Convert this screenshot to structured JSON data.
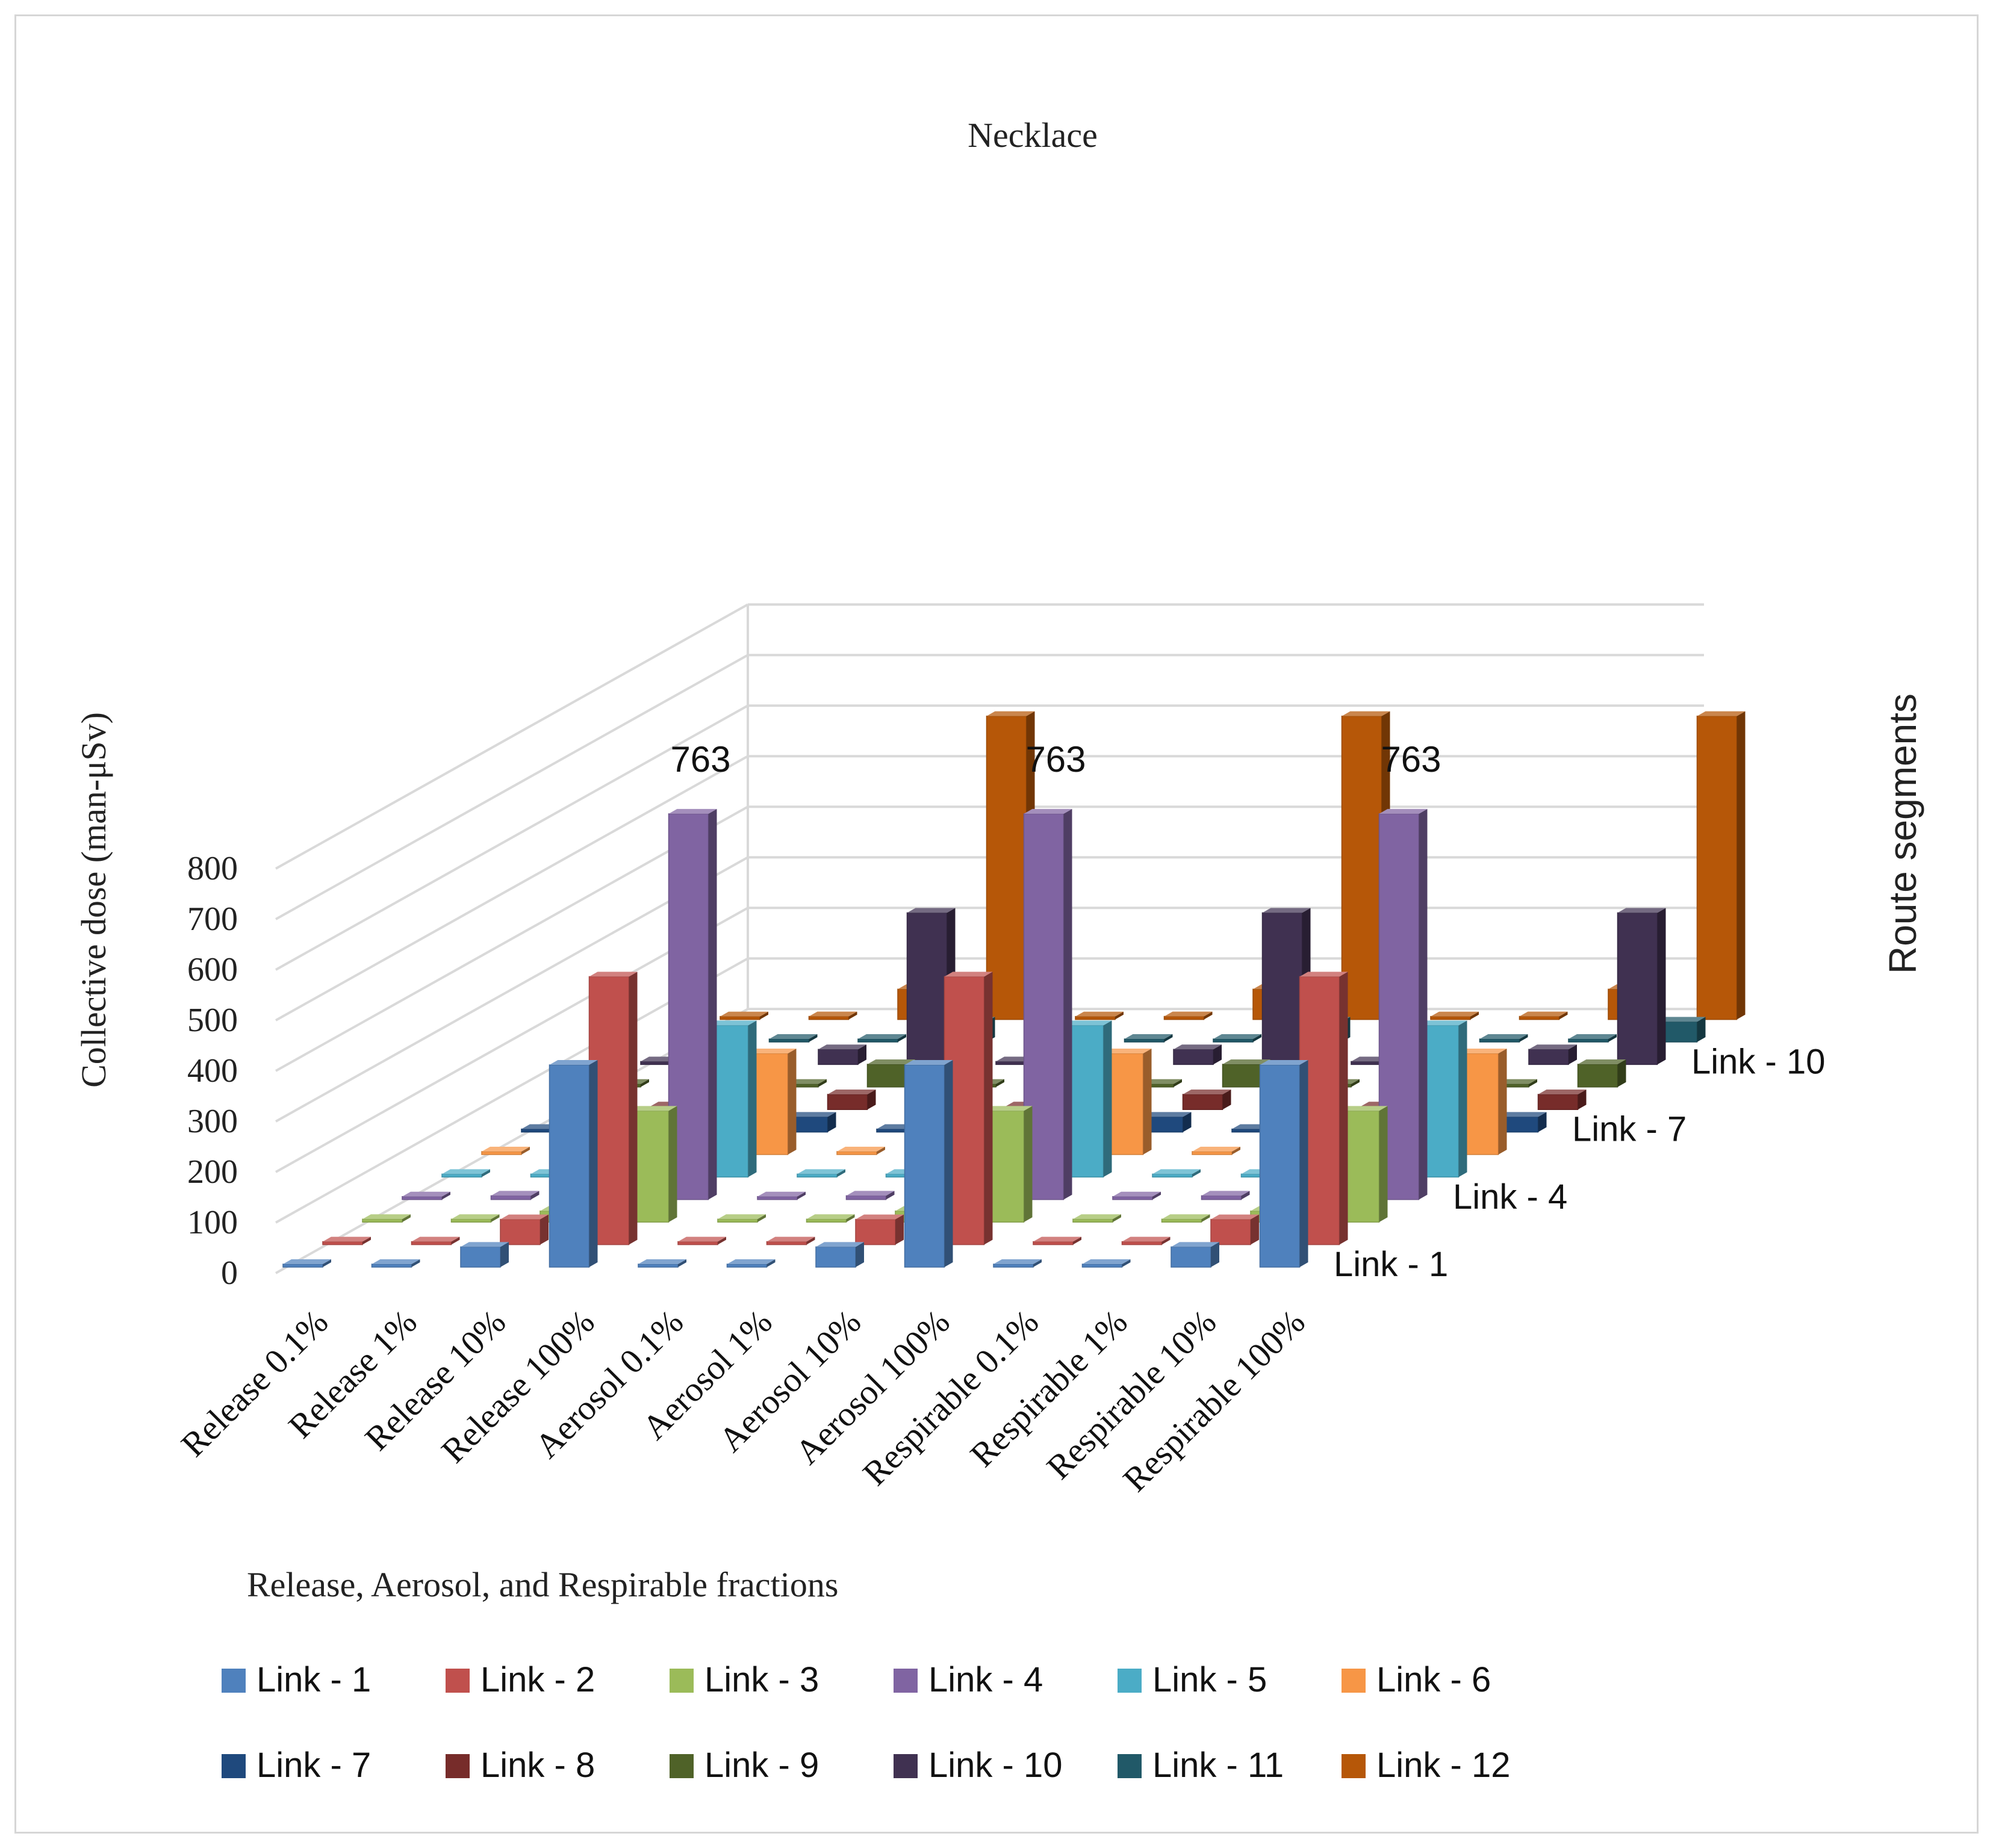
{
  "chart_data": {
    "type": "bar",
    "subtype": "3d-column",
    "title": "Necklace",
    "ylabel": "Collective dose (man-μSv)",
    "xlabel": "Release, Aerosol, and Respirable fractions",
    "zlabel": "Route segments",
    "ylim": [
      0,
      800
    ],
    "yticks": [
      "0",
      "100",
      "200",
      "300",
      "400",
      "500",
      "600",
      "700",
      "800"
    ],
    "categories": [
      "Release 0.1%",
      "Release 1%",
      "Release 10%",
      "Release 100%",
      "Aerosol 0.1%",
      "Aerosol 1%",
      "Aerosol 10%",
      "Aerosol 100%",
      "Respirable 0.1%",
      "Respirable 1%",
      "Respirable 10%",
      "Respirable 100%"
    ],
    "depth_labels": [
      "Link - 1",
      "Link - 4",
      "Link - 7",
      "Link - 10"
    ],
    "grid": true,
    "legend_position": "bottom",
    "series": [
      {
        "name": "Link - 1",
        "color": "#4f81bd",
        "values": [
          0.4,
          4,
          40,
          400,
          0.4,
          4,
          40,
          400,
          0.4,
          4,
          40,
          400
        ]
      },
      {
        "name": "Link - 2",
        "color": "#c0504d",
        "values": [
          0.5,
          5,
          50,
          530,
          0.5,
          5,
          50,
          530,
          0.5,
          5,
          50,
          530
        ]
      },
      {
        "name": "Link - 3",
        "color": "#9bbb59",
        "values": [
          0.2,
          2,
          22,
          220,
          0.2,
          2,
          22,
          220,
          0.2,
          2,
          22,
          220
        ]
      },
      {
        "name": "Link - 4",
        "color": "#8064a2",
        "values": [
          0.8,
          7.6,
          76,
          763,
          0.8,
          7.6,
          76,
          763,
          0.8,
          7.6,
          76,
          763
        ]
      },
      {
        "name": "Link - 5",
        "color": "#4bacc6",
        "values": [
          0.3,
          3,
          30,
          300,
          0.3,
          3,
          30,
          300,
          0.3,
          3,
          30,
          300
        ]
      },
      {
        "name": "Link - 6",
        "color": "#f79646",
        "values": [
          0.2,
          2,
          20,
          200,
          0.2,
          2,
          20,
          200,
          0.2,
          2,
          20,
          200
        ]
      },
      {
        "name": "Link - 7",
        "color": "#1f497d",
        "values": [
          0.1,
          1,
          3,
          30,
          0.1,
          1,
          3,
          30,
          0.1,
          1,
          3,
          30
        ]
      },
      {
        "name": "Link - 8",
        "color": "#772c2a",
        "values": [
          0.1,
          1,
          3,
          30,
          0.1,
          1,
          3,
          30,
          0.1,
          1,
          3,
          30
        ]
      },
      {
        "name": "Link - 9",
        "color": "#4f6228",
        "values": [
          0.1,
          1,
          4,
          45,
          0.1,
          1,
          4,
          45,
          0.1,
          1,
          4,
          45
        ]
      },
      {
        "name": "Link - 10",
        "color": "#403151",
        "values": [
          0.3,
          3,
          30,
          300,
          0.3,
          3,
          30,
          300,
          0.3,
          3,
          30,
          300
        ]
      },
      {
        "name": "Link - 11",
        "color": "#215968",
        "values": [
          0.1,
          1,
          4,
          40,
          0.1,
          1,
          4,
          40,
          0.1,
          1,
          4,
          40
        ]
      },
      {
        "name": "Link - 12",
        "color": "#b65708",
        "values": [
          0.6,
          6,
          60,
          600,
          0.6,
          6,
          60,
          600,
          0.6,
          6,
          60,
          600
        ]
      }
    ],
    "annotations": [
      "763",
      "763",
      "763"
    ]
  }
}
